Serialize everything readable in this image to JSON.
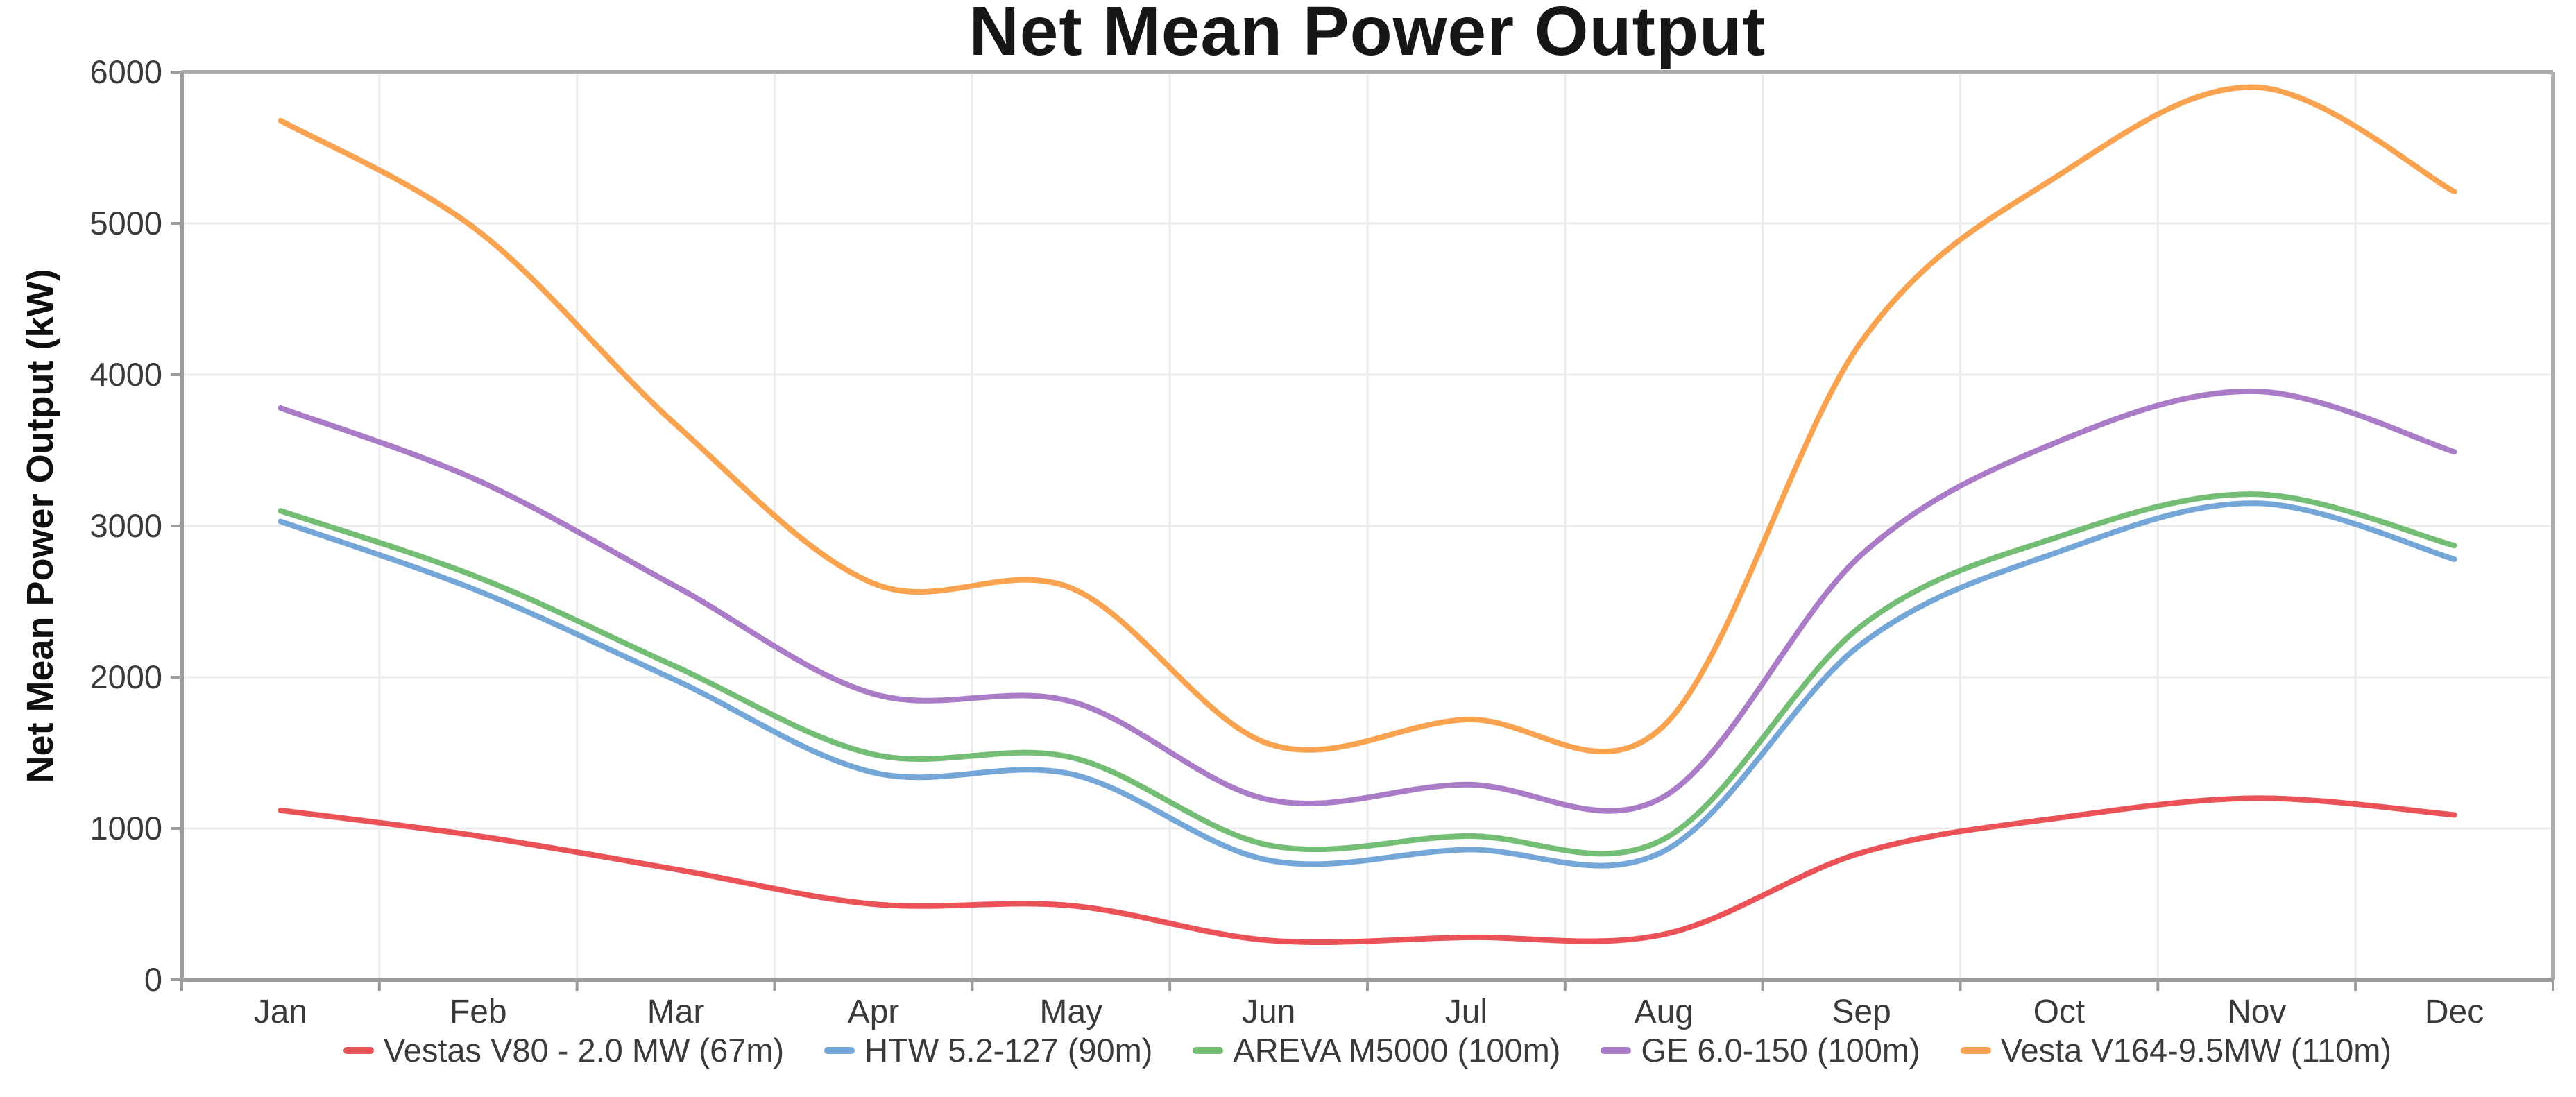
{
  "title": "Net Mean Power Output",
  "chart_data": {
    "type": "line",
    "title": "Net Mean Power Output",
    "xlabel": "",
    "ylabel": "Net Mean Power Output (kW)",
    "ylim": [
      0,
      6000
    ],
    "y_ticks": [
      0,
      1000,
      2000,
      3000,
      4000,
      5000,
      6000
    ],
    "grid": true,
    "legend_position": "bottom",
    "categories": [
      "Jan",
      "Feb",
      "Mar",
      "Apr",
      "May",
      "Jun",
      "Jul",
      "Aug",
      "Sep",
      "Oct",
      "Nov",
      "Dec"
    ],
    "series": [
      {
        "name": "Vestas V80 - 2.0 MW (67m)",
        "color": "#ea5257",
        "values": [
          1120,
          950,
          730,
          500,
          490,
          260,
          280,
          300,
          840,
          1070,
          1200,
          1090
        ]
      },
      {
        "name": "HTW 5.2-127 (90m)",
        "color": "#74a7d8",
        "values": [
          3030,
          2570,
          1980,
          1370,
          1360,
          790,
          860,
          850,
          2220,
          2830,
          3150,
          2780
        ]
      },
      {
        "name": "AREVA M5000 (100m)",
        "color": "#74bd74",
        "values": [
          3100,
          2660,
          2070,
          1490,
          1470,
          890,
          950,
          930,
          2340,
          2930,
          3210,
          2870
        ]
      },
      {
        "name": "GE 6.0-150 (100m)",
        "color": "#aa7bc7",
        "values": [
          3780,
          3300,
          2600,
          1890,
          1840,
          1190,
          1290,
          1210,
          2810,
          3560,
          3890,
          3490
        ]
      },
      {
        "name": "Vesta V164-9.5MW (110m)",
        "color": "#f9a350",
        "values": [
          5680,
          4950,
          3670,
          2620,
          2590,
          1560,
          1720,
          1680,
          4220,
          5320,
          5900,
          5210
        ]
      }
    ]
  },
  "style_colors": {
    "gridline": "#ececec",
    "frame": "#adadad",
    "axis": "#9c9c9c",
    "tick_label": "#3a3a3a"
  }
}
